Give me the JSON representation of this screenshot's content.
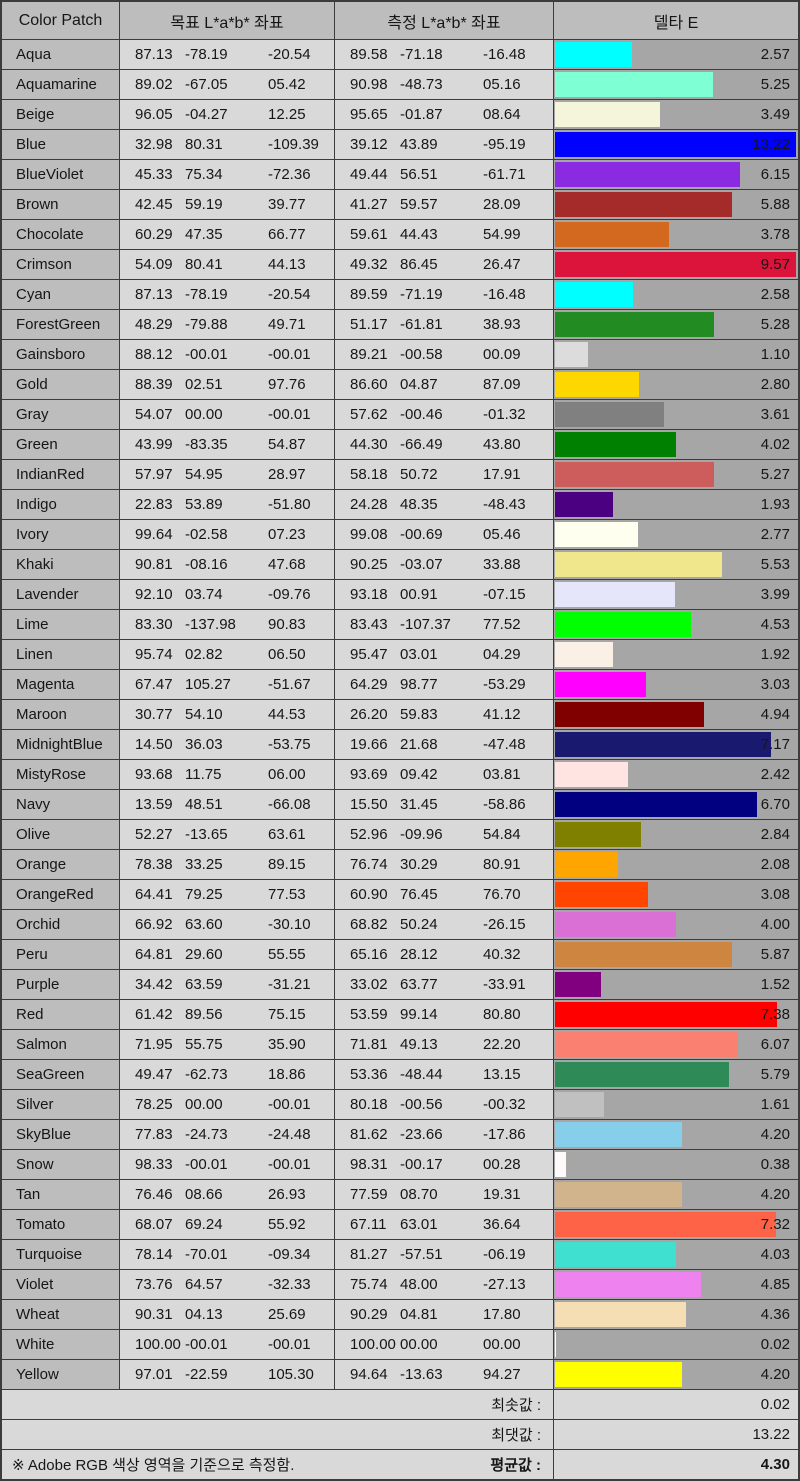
{
  "header": {
    "color_patch": "Color Patch",
    "target_lab": "목표 L*a*b* 좌표",
    "measured_lab": "측정 L*a*b* 좌표",
    "delta_e": "델타 E"
  },
  "bar": {
    "scale_max": 8,
    "track_color": "#a6a6a6"
  },
  "rows": [
    {
      "name": "Aqua",
      "css": "aqua",
      "target": [
        "87.13",
        "-78.19",
        "-20.54"
      ],
      "measured": [
        "89.58",
        "-71.18",
        "-16.48"
      ],
      "delta": "2.57"
    },
    {
      "name": "Aquamarine",
      "css": "aquamarine",
      "target": [
        "89.02",
        "-67.05",
        "05.42"
      ],
      "measured": [
        "90.98",
        "-48.73",
        "05.16"
      ],
      "delta": "5.25"
    },
    {
      "name": "Beige",
      "css": "beige",
      "target": [
        "96.05",
        "-04.27",
        "12.25"
      ],
      "measured": [
        "95.65",
        "-01.87",
        "08.64"
      ],
      "delta": "3.49"
    },
    {
      "name": "Blue",
      "css": "blue",
      "target": [
        "32.98",
        "80.31",
        "-109.39"
      ],
      "measured": [
        "39.12",
        "43.89",
        "-95.19"
      ],
      "delta": "13.22"
    },
    {
      "name": "BlueViolet",
      "css": "blueviolet",
      "target": [
        "45.33",
        "75.34",
        "-72.36"
      ],
      "measured": [
        "49.44",
        "56.51",
        "-61.71"
      ],
      "delta": "6.15"
    },
    {
      "name": "Brown",
      "css": "brown",
      "target": [
        "42.45",
        "59.19",
        "39.77"
      ],
      "measured": [
        "41.27",
        "59.57",
        "28.09"
      ],
      "delta": "5.88"
    },
    {
      "name": "Chocolate",
      "css": "chocolate",
      "target": [
        "60.29",
        "47.35",
        "66.77"
      ],
      "measured": [
        "59.61",
        "44.43",
        "54.99"
      ],
      "delta": "3.78"
    },
    {
      "name": "Crimson",
      "css": "crimson",
      "target": [
        "54.09",
        "80.41",
        "44.13"
      ],
      "measured": [
        "49.32",
        "86.45",
        "26.47"
      ],
      "delta": "9.57"
    },
    {
      "name": "Cyan",
      "css": "cyan",
      "target": [
        "87.13",
        "-78.19",
        "-20.54"
      ],
      "measured": [
        "89.59",
        "-71.19",
        "-16.48"
      ],
      "delta": "2.58"
    },
    {
      "name": "ForestGreen",
      "css": "forestgreen",
      "target": [
        "48.29",
        "-79.88",
        "49.71"
      ],
      "measured": [
        "51.17",
        "-61.81",
        "38.93"
      ],
      "delta": "5.28"
    },
    {
      "name": "Gainsboro",
      "css": "gainsboro",
      "target": [
        "88.12",
        "-00.01",
        "-00.01"
      ],
      "measured": [
        "89.21",
        "-00.58",
        "00.09"
      ],
      "delta": "1.10"
    },
    {
      "name": "Gold",
      "css": "gold",
      "target": [
        "88.39",
        "02.51",
        "97.76"
      ],
      "measured": [
        "86.60",
        "04.87",
        "87.09"
      ],
      "delta": "2.80"
    },
    {
      "name": "Gray",
      "css": "gray",
      "target": [
        "54.07",
        "00.00",
        "-00.01"
      ],
      "measured": [
        "57.62",
        "-00.46",
        "-01.32"
      ],
      "delta": "3.61"
    },
    {
      "name": "Green",
      "css": "green",
      "target": [
        "43.99",
        "-83.35",
        "54.87"
      ],
      "measured": [
        "44.30",
        "-66.49",
        "43.80"
      ],
      "delta": "4.02"
    },
    {
      "name": "IndianRed",
      "css": "indianred",
      "target": [
        "57.97",
        "54.95",
        "28.97"
      ],
      "measured": [
        "58.18",
        "50.72",
        "17.91"
      ],
      "delta": "5.27"
    },
    {
      "name": "Indigo",
      "css": "indigo",
      "target": [
        "22.83",
        "53.89",
        "-51.80"
      ],
      "measured": [
        "24.28",
        "48.35",
        "-48.43"
      ],
      "delta": "1.93"
    },
    {
      "name": "Ivory",
      "css": "ivory",
      "target": [
        "99.64",
        "-02.58",
        "07.23"
      ],
      "measured": [
        "99.08",
        "-00.69",
        "05.46"
      ],
      "delta": "2.77"
    },
    {
      "name": "Khaki",
      "css": "khaki",
      "target": [
        "90.81",
        "-08.16",
        "47.68"
      ],
      "measured": [
        "90.25",
        "-03.07",
        "33.88"
      ],
      "delta": "5.53"
    },
    {
      "name": "Lavender",
      "css": "lavender",
      "target": [
        "92.10",
        "03.74",
        "-09.76"
      ],
      "measured": [
        "93.18",
        "00.91",
        "-07.15"
      ],
      "delta": "3.99"
    },
    {
      "name": "Lime",
      "css": "lime",
      "target": [
        "83.30",
        "-137.98",
        "90.83"
      ],
      "measured": [
        "83.43",
        "-107.37",
        "77.52"
      ],
      "delta": "4.53"
    },
    {
      "name": "Linen",
      "css": "linen",
      "target": [
        "95.74",
        "02.82",
        "06.50"
      ],
      "measured": [
        "95.47",
        "03.01",
        "04.29"
      ],
      "delta": "1.92"
    },
    {
      "name": "Magenta",
      "css": "magenta",
      "target": [
        "67.47",
        "105.27",
        "-51.67"
      ],
      "measured": [
        "64.29",
        "98.77",
        "-53.29"
      ],
      "delta": "3.03"
    },
    {
      "name": "Maroon",
      "css": "maroon",
      "target": [
        "30.77",
        "54.10",
        "44.53"
      ],
      "measured": [
        "26.20",
        "59.83",
        "41.12"
      ],
      "delta": "4.94"
    },
    {
      "name": "MidnightBlue",
      "css": "midnightblue",
      "target": [
        "14.50",
        "36.03",
        "-53.75"
      ],
      "measured": [
        "19.66",
        "21.68",
        "-47.48"
      ],
      "delta": "7.17"
    },
    {
      "name": "MistyRose",
      "css": "mistyrose",
      "target": [
        "93.68",
        "11.75",
        "06.00"
      ],
      "measured": [
        "93.69",
        "09.42",
        "03.81"
      ],
      "delta": "2.42"
    },
    {
      "name": "Navy",
      "css": "navy",
      "target": [
        "13.59",
        "48.51",
        "-66.08"
      ],
      "measured": [
        "15.50",
        "31.45",
        "-58.86"
      ],
      "delta": "6.70"
    },
    {
      "name": "Olive",
      "css": "olive",
      "target": [
        "52.27",
        "-13.65",
        "63.61"
      ],
      "measured": [
        "52.96",
        "-09.96",
        "54.84"
      ],
      "delta": "2.84"
    },
    {
      "name": "Orange",
      "css": "orange",
      "target": [
        "78.38",
        "33.25",
        "89.15"
      ],
      "measured": [
        "76.74",
        "30.29",
        "80.91"
      ],
      "delta": "2.08"
    },
    {
      "name": "OrangeRed",
      "css": "orangered",
      "target": [
        "64.41",
        "79.25",
        "77.53"
      ],
      "measured": [
        "60.90",
        "76.45",
        "76.70"
      ],
      "delta": "3.08"
    },
    {
      "name": "Orchid",
      "css": "orchid",
      "target": [
        "66.92",
        "63.60",
        "-30.10"
      ],
      "measured": [
        "68.82",
        "50.24",
        "-26.15"
      ],
      "delta": "4.00"
    },
    {
      "name": "Peru",
      "css": "peru",
      "target": [
        "64.81",
        "29.60",
        "55.55"
      ],
      "measured": [
        "65.16",
        "28.12",
        "40.32"
      ],
      "delta": "5.87"
    },
    {
      "name": "Purple",
      "css": "purple",
      "target": [
        "34.42",
        "63.59",
        "-31.21"
      ],
      "measured": [
        "33.02",
        "63.77",
        "-33.91"
      ],
      "delta": "1.52"
    },
    {
      "name": "Red",
      "css": "red",
      "target": [
        "61.42",
        "89.56",
        "75.15"
      ],
      "measured": [
        "53.59",
        "99.14",
        "80.80"
      ],
      "delta": "7.38"
    },
    {
      "name": "Salmon",
      "css": "salmon",
      "target": [
        "71.95",
        "55.75",
        "35.90"
      ],
      "measured": [
        "71.81",
        "49.13",
        "22.20"
      ],
      "delta": "6.07"
    },
    {
      "name": "SeaGreen",
      "css": "seagreen",
      "target": [
        "49.47",
        "-62.73",
        "18.86"
      ],
      "measured": [
        "53.36",
        "-48.44",
        "13.15"
      ],
      "delta": "5.79"
    },
    {
      "name": "Silver",
      "css": "silver",
      "target": [
        "78.25",
        "00.00",
        "-00.01"
      ],
      "measured": [
        "80.18",
        "-00.56",
        "-00.32"
      ],
      "delta": "1.61"
    },
    {
      "name": "SkyBlue",
      "css": "skyblue",
      "target": [
        "77.83",
        "-24.73",
        "-24.48"
      ],
      "measured": [
        "81.62",
        "-23.66",
        "-17.86"
      ],
      "delta": "4.20"
    },
    {
      "name": "Snow",
      "css": "snow",
      "target": [
        "98.33",
        "-00.01",
        "-00.01"
      ],
      "measured": [
        "98.31",
        "-00.17",
        "00.28"
      ],
      "delta": "0.38"
    },
    {
      "name": "Tan",
      "css": "tan",
      "target": [
        "76.46",
        "08.66",
        "26.93"
      ],
      "measured": [
        "77.59",
        "08.70",
        "19.31"
      ],
      "delta": "4.20"
    },
    {
      "name": "Tomato",
      "css": "tomato",
      "target": [
        "68.07",
        "69.24",
        "55.92"
      ],
      "measured": [
        "67.11",
        "63.01",
        "36.64"
      ],
      "delta": "7.32"
    },
    {
      "name": "Turquoise",
      "css": "turquoise",
      "target": [
        "78.14",
        "-70.01",
        "-09.34"
      ],
      "measured": [
        "81.27",
        "-57.51",
        "-06.19"
      ],
      "delta": "4.03"
    },
    {
      "name": "Violet",
      "css": "violet",
      "target": [
        "73.76",
        "64.57",
        "-32.33"
      ],
      "measured": [
        "75.74",
        "48.00",
        "-27.13"
      ],
      "delta": "4.85"
    },
    {
      "name": "Wheat",
      "css": "wheat",
      "target": [
        "90.31",
        "04.13",
        "25.69"
      ],
      "measured": [
        "90.29",
        "04.81",
        "17.80"
      ],
      "delta": "4.36"
    },
    {
      "name": "White",
      "css": "white",
      "target": [
        "100.00",
        "-00.01",
        "-00.01"
      ],
      "measured": [
        "100.00",
        "00.00",
        "00.00"
      ],
      "delta": "0.02"
    },
    {
      "name": "Yellow",
      "css": "yellow",
      "target": [
        "97.01",
        "-22.59",
        "105.30"
      ],
      "measured": [
        "94.64",
        "-13.63",
        "94.27"
      ],
      "delta": "4.20"
    }
  ],
  "summary": {
    "min": {
      "label": "최솟값 :",
      "value": "0.02"
    },
    "max": {
      "label": "최댓값 :",
      "value": "13.22"
    },
    "avg": {
      "label": "평균값 :",
      "value": "4.30"
    },
    "note": "※ Adobe RGB 색상 영역을 기준으로 측정함."
  }
}
